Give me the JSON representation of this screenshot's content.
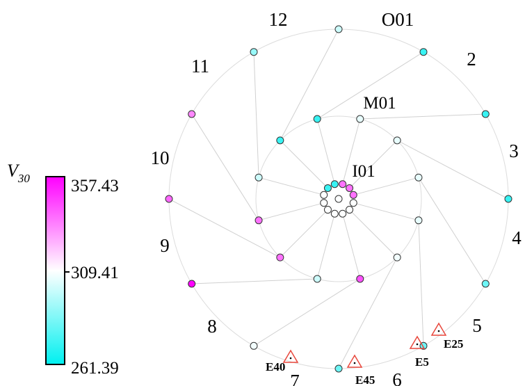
{
  "colorbar": {
    "label_main": "V",
    "label_sub": "30",
    "max_label": "357.43",
    "mid_label": "309.41",
    "min_label": "261.39",
    "min_value": 261.39,
    "mid_value": 309.41,
    "max_value": 357.43,
    "colors": {
      "low": "#00f0f0",
      "mid": "#ffffff",
      "high": "#ff00ff"
    }
  },
  "spokes": {
    "outer": [
      {
        "label": "O01",
        "value": 272
      },
      {
        "label": "2",
        "value": 272
      },
      {
        "label": "3",
        "value": 272
      },
      {
        "label": "4",
        "value": 282
      },
      {
        "label": "5",
        "value": 282
      },
      {
        "label": "6",
        "value": 282
      },
      {
        "label": "7",
        "value": 307
      },
      {
        "label": "8",
        "value": 357
      },
      {
        "label": "9",
        "value": 338
      },
      {
        "label": "10",
        "value": 332
      },
      {
        "label": "11",
        "value": 290
      },
      {
        "label": "12",
        "value": 300
      }
    ],
    "middle": [
      {
        "label": "M01",
        "value": 272
      },
      {
        "value": 305
      },
      {
        "value": 305
      },
      {
        "value": 305
      },
      {
        "value": 305
      },
      {
        "value": 307
      },
      {
        "value": 342
      },
      {
        "value": 300
      },
      {
        "value": 336
      },
      {
        "value": 336
      },
      {
        "value": 300
      },
      {
        "value": 272
      }
    ],
    "inner": [
      {
        "label": "I01",
        "value": 272
      },
      {
        "value": 336
      },
      {
        "value": 336
      },
      {
        "value": 336
      },
      {
        "value": 309
      },
      {
        "value": 309
      },
      {
        "value": 309
      },
      {
        "value": 309
      },
      {
        "value": 309
      },
      {
        "value": 309
      },
      {
        "value": 309
      },
      {
        "value": 272
      }
    ],
    "center_value": 309
  },
  "markers": [
    "E25",
    "E5",
    "E45",
    "E40"
  ],
  "marker_color": "#e8473c"
}
